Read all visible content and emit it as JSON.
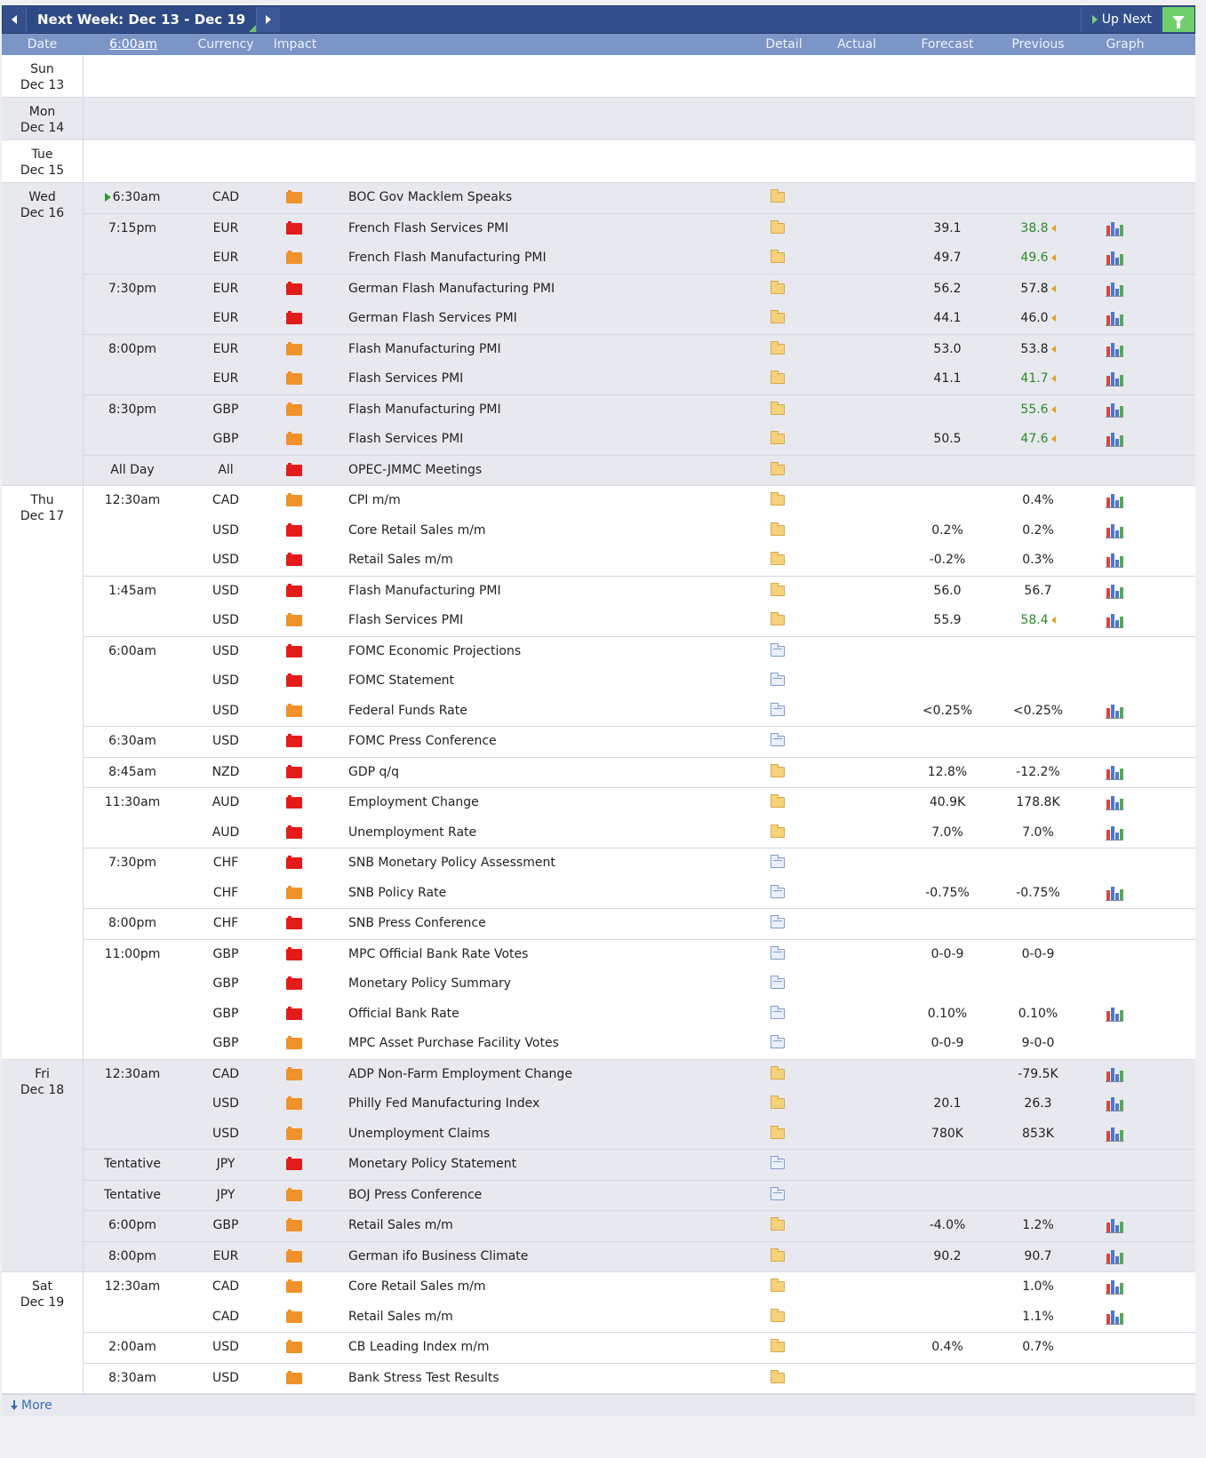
{
  "toolbar": {
    "week_label": "Next Week: Dec 13 - Dec 19",
    "up_next_label": "Up Next"
  },
  "columns": {
    "date": "Date",
    "time": "6:00am",
    "currency": "Currency",
    "impact": "Impact",
    "detail": "Detail",
    "actual": "Actual",
    "forecast": "Forecast",
    "previous": "Previous",
    "graph": "Graph"
  },
  "days": [
    {
      "day": "Sun",
      "date": "Dec 13",
      "events": []
    },
    {
      "day": "Mon",
      "date": "Dec 14",
      "events": []
    },
    {
      "day": "Tue",
      "date": "Dec 15",
      "events": []
    },
    {
      "day": "Wed",
      "date": "Dec 16",
      "events": [
        {
          "time": "6:30am",
          "current": true,
          "cur": "CAD",
          "impact": "orange",
          "name": "BOC Gov Macklem Speaks",
          "detail": "yellow",
          "actual": "",
          "forecast": "",
          "previous": "",
          "graph": false
        },
        {
          "time": "7:15pm",
          "cur": "EUR",
          "impact": "red",
          "name": "French Flash Services PMI",
          "detail": "yellow",
          "actual": "",
          "forecast": "39.1",
          "previous": "38.8",
          "prev_color": "green",
          "revised": true,
          "graph": true
        },
        {
          "time": "",
          "cur": "EUR",
          "impact": "orange",
          "name": "French Flash Manufacturing PMI",
          "detail": "yellow",
          "actual": "",
          "forecast": "49.7",
          "previous": "49.6",
          "prev_color": "green",
          "revised": true,
          "graph": true
        },
        {
          "time": "7:30pm",
          "cur": "EUR",
          "impact": "red",
          "name": "German Flash Manufacturing PMI",
          "detail": "yellow",
          "actual": "",
          "forecast": "56.2",
          "previous": "57.8",
          "revised": true,
          "graph": true
        },
        {
          "time": "",
          "cur": "EUR",
          "impact": "red",
          "name": "German Flash Services PMI",
          "detail": "yellow",
          "actual": "",
          "forecast": "44.1",
          "previous": "46.0",
          "revised": true,
          "graph": true
        },
        {
          "time": "8:00pm",
          "cur": "EUR",
          "impact": "orange",
          "name": "Flash Manufacturing PMI",
          "detail": "yellow",
          "actual": "",
          "forecast": "53.0",
          "previous": "53.8",
          "revised": true,
          "graph": true
        },
        {
          "time": "",
          "cur": "EUR",
          "impact": "orange",
          "name": "Flash Services PMI",
          "detail": "yellow",
          "actual": "",
          "forecast": "41.1",
          "previous": "41.7",
          "prev_color": "green",
          "revised": true,
          "graph": true
        },
        {
          "time": "8:30pm",
          "cur": "GBP",
          "impact": "orange",
          "name": "Flash Manufacturing PMI",
          "detail": "yellow",
          "actual": "",
          "forecast": "",
          "previous": "55.6",
          "prev_color": "green",
          "revised": true,
          "graph": true
        },
        {
          "time": "",
          "cur": "GBP",
          "impact": "orange",
          "name": "Flash Services PMI",
          "detail": "yellow",
          "actual": "",
          "forecast": "50.5",
          "previous": "47.6",
          "prev_color": "green",
          "revised": true,
          "graph": true
        },
        {
          "time": "All Day",
          "cur": "All",
          "impact": "red",
          "name": "OPEC-JMMC Meetings",
          "detail": "yellow",
          "actual": "",
          "forecast": "",
          "previous": "",
          "graph": false
        }
      ]
    },
    {
      "day": "Thu",
      "date": "Dec 17",
      "events": [
        {
          "time": "12:30am",
          "cur": "CAD",
          "impact": "orange",
          "name": "CPI m/m",
          "detail": "yellow",
          "actual": "",
          "forecast": "",
          "previous": "0.4%",
          "graph": true
        },
        {
          "time": "",
          "cur": "USD",
          "impact": "red",
          "name": "Core Retail Sales m/m",
          "detail": "yellow",
          "actual": "",
          "forecast": "0.2%",
          "previous": "0.2%",
          "graph": true
        },
        {
          "time": "",
          "cur": "USD",
          "impact": "red",
          "name": "Retail Sales m/m",
          "detail": "yellow",
          "actual": "",
          "forecast": "-0.2%",
          "previous": "0.3%",
          "graph": true
        },
        {
          "time": "1:45am",
          "cur": "USD",
          "impact": "red",
          "name": "Flash Manufacturing PMI",
          "detail": "yellow",
          "actual": "",
          "forecast": "56.0",
          "previous": "56.7",
          "graph": true
        },
        {
          "time": "",
          "cur": "USD",
          "impact": "orange",
          "name": "Flash Services PMI",
          "detail": "yellow",
          "actual": "",
          "forecast": "55.9",
          "previous": "58.4",
          "prev_color": "green",
          "revised": true,
          "graph": true
        },
        {
          "time": "6:00am",
          "cur": "USD",
          "impact": "red",
          "name": "FOMC Economic Projections",
          "detail": "blue",
          "actual": "",
          "forecast": "",
          "previous": "",
          "graph": false
        },
        {
          "time": "",
          "cur": "USD",
          "impact": "red",
          "name": "FOMC Statement",
          "detail": "blue",
          "actual": "",
          "forecast": "",
          "previous": "",
          "graph": false
        },
        {
          "time": "",
          "cur": "USD",
          "impact": "orange",
          "name": "Federal Funds Rate",
          "detail": "blue",
          "actual": "",
          "forecast": "<0.25%",
          "previous": "<0.25%",
          "graph": true
        },
        {
          "time": "6:30am",
          "cur": "USD",
          "impact": "red",
          "name": "FOMC Press Conference",
          "detail": "blue",
          "actual": "",
          "forecast": "",
          "previous": "",
          "graph": false
        },
        {
          "time": "8:45am",
          "cur": "NZD",
          "impact": "red",
          "name": "GDP q/q",
          "detail": "yellow",
          "actual": "",
          "forecast": "12.8%",
          "previous": "-12.2%",
          "graph": true
        },
        {
          "time": "11:30am",
          "cur": "AUD",
          "impact": "red",
          "name": "Employment Change",
          "detail": "yellow",
          "actual": "",
          "forecast": "40.9K",
          "previous": "178.8K",
          "graph": true
        },
        {
          "time": "",
          "cur": "AUD",
          "impact": "red",
          "name": "Unemployment Rate",
          "detail": "yellow",
          "actual": "",
          "forecast": "7.0%",
          "previous": "7.0%",
          "graph": true
        },
        {
          "time": "7:30pm",
          "cur": "CHF",
          "impact": "red",
          "name": "SNB Monetary Policy Assessment",
          "detail": "blue",
          "actual": "",
          "forecast": "",
          "previous": "",
          "graph": false
        },
        {
          "time": "",
          "cur": "CHF",
          "impact": "orange",
          "name": "SNB Policy Rate",
          "detail": "blue",
          "actual": "",
          "forecast": "-0.75%",
          "previous": "-0.75%",
          "graph": true
        },
        {
          "time": "8:00pm",
          "cur": "CHF",
          "impact": "red",
          "name": "SNB Press Conference",
          "detail": "blue",
          "actual": "",
          "forecast": "",
          "previous": "",
          "graph": false
        },
        {
          "time": "11:00pm",
          "cur": "GBP",
          "impact": "red",
          "name": "MPC Official Bank Rate Votes",
          "detail": "blue",
          "actual": "",
          "forecast": "0-0-9",
          "previous": "0-0-9",
          "graph": false
        },
        {
          "time": "",
          "cur": "GBP",
          "impact": "red",
          "name": "Monetary Policy Summary",
          "detail": "blue",
          "actual": "",
          "forecast": "",
          "previous": "",
          "graph": false
        },
        {
          "time": "",
          "cur": "GBP",
          "impact": "red",
          "name": "Official Bank Rate",
          "detail": "blue",
          "actual": "",
          "forecast": "0.10%",
          "previous": "0.10%",
          "graph": true
        },
        {
          "time": "",
          "cur": "GBP",
          "impact": "orange",
          "name": "MPC Asset Purchase Facility Votes",
          "detail": "blue",
          "actual": "",
          "forecast": "0-0-9",
          "previous": "9-0-0",
          "graph": false
        }
      ]
    },
    {
      "day": "Fri",
      "date": "Dec 18",
      "events": [
        {
          "time": "12:30am",
          "cur": "CAD",
          "impact": "orange",
          "name": "ADP Non-Farm Employment Change",
          "detail": "yellow",
          "actual": "",
          "forecast": "",
          "previous": "-79.5K",
          "graph": true
        },
        {
          "time": "",
          "cur": "USD",
          "impact": "orange",
          "name": "Philly Fed Manufacturing Index",
          "detail": "yellow",
          "actual": "",
          "forecast": "20.1",
          "previous": "26.3",
          "graph": true
        },
        {
          "time": "",
          "cur": "USD",
          "impact": "orange",
          "name": "Unemployment Claims",
          "detail": "yellow",
          "actual": "",
          "forecast": "780K",
          "previous": "853K",
          "graph": true
        },
        {
          "time": "Tentative",
          "cur": "JPY",
          "impact": "red",
          "name": "Monetary Policy Statement",
          "detail": "blue",
          "actual": "",
          "forecast": "",
          "previous": "",
          "graph": false
        },
        {
          "time": "Tentative",
          "cur": "JPY",
          "impact": "orange",
          "name": "BOJ Press Conference",
          "detail": "blue",
          "actual": "",
          "forecast": "",
          "previous": "",
          "graph": false
        },
        {
          "time": "6:00pm",
          "cur": "GBP",
          "impact": "orange",
          "name": "Retail Sales m/m",
          "detail": "yellow",
          "actual": "",
          "forecast": "-4.0%",
          "previous": "1.2%",
          "graph": true
        },
        {
          "time": "8:00pm",
          "cur": "EUR",
          "impact": "orange",
          "name": "German ifo Business Climate",
          "detail": "yellow",
          "actual": "",
          "forecast": "90.2",
          "previous": "90.7",
          "graph": true
        }
      ]
    },
    {
      "day": "Sat",
      "date": "Dec 19",
      "events": [
        {
          "time": "12:30am",
          "cur": "CAD",
          "impact": "orange",
          "name": "Core Retail Sales m/m",
          "detail": "yellow",
          "actual": "",
          "forecast": "",
          "previous": "1.0%",
          "graph": true
        },
        {
          "time": "",
          "cur": "CAD",
          "impact": "orange",
          "name": "Retail Sales m/m",
          "detail": "yellow",
          "actual": "",
          "forecast": "",
          "previous": "1.1%",
          "graph": true
        },
        {
          "time": "2:00am",
          "cur": "USD",
          "impact": "orange",
          "name": "CB Leading Index m/m",
          "detail": "yellow",
          "actual": "",
          "forecast": "0.4%",
          "previous": "0.7%",
          "graph": false
        },
        {
          "time": "8:30am",
          "cur": "USD",
          "impact": "orange",
          "name": "Bank Stress Test Results",
          "detail": "yellow",
          "actual": "",
          "forecast": "",
          "previous": "",
          "graph": false
        }
      ]
    }
  ],
  "footer": {
    "more_label": "More"
  },
  "colors": {
    "topbar": "#33508d",
    "header": "#7b95c6",
    "impact_high": "#e41b1b",
    "impact_medium": "#f0912b",
    "better_than_expected": "#2a8a2a",
    "filter": "#6fcf6a"
  }
}
